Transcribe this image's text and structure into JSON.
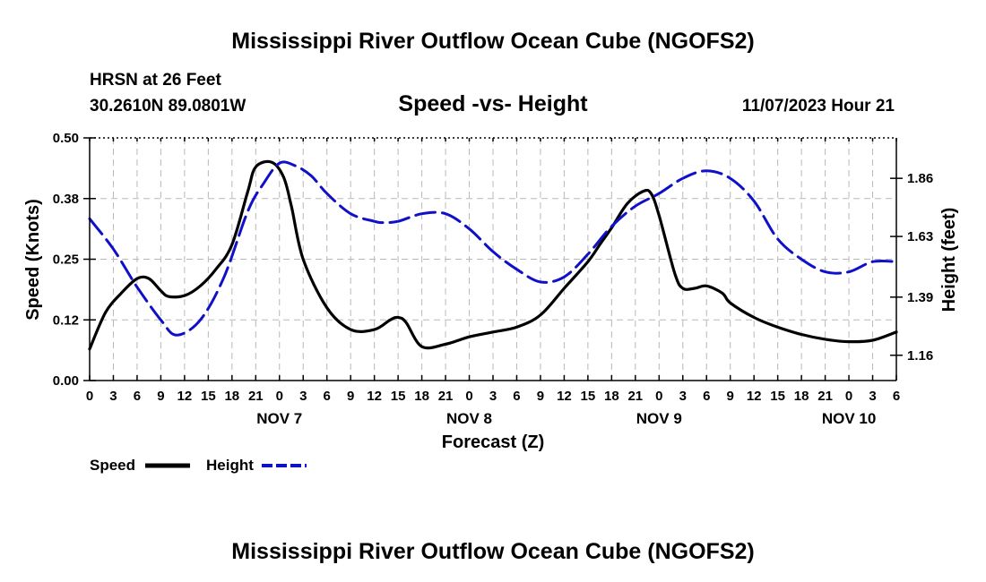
{
  "header": {
    "title": "Mississippi River Outflow Ocean Cube (NGOFS2)",
    "station": "HRSN at 26 Feet",
    "coords": "30.2610N  89.0801W",
    "chart_title": "Speed -vs- Height",
    "datetime": "11/07/2023 Hour 21"
  },
  "footer": {
    "title": "Mississippi River Outflow Ocean Cube (NGOFS2)"
  },
  "chart_data": {
    "type": "line",
    "title": "Speed -vs- Height",
    "xlabel": "Forecast (Z)",
    "ylabel": "Speed (Knots)",
    "y2label": "Height (feet)",
    "x_unit": "hours since NOV 7 00Z",
    "xlim": [
      -24,
      78
    ],
    "ylim": [
      0,
      0.5
    ],
    "y2lim": [
      1.06,
      2.02
    ],
    "x_ticks": [
      -24,
      -21,
      -18,
      -15,
      -12,
      -9,
      -6,
      -3,
      0,
      3,
      6,
      9,
      12,
      15,
      18,
      21,
      24,
      27,
      30,
      33,
      36,
      39,
      42,
      45,
      48,
      51,
      54,
      57,
      60,
      63,
      66,
      69,
      72,
      75,
      78
    ],
    "x_tick_labels": [
      "0",
      "3",
      "6",
      "9",
      "12",
      "15",
      "18",
      "21",
      "0",
      "3",
      "6",
      "9",
      "12",
      "15",
      "18",
      "21",
      "0",
      "3",
      "6",
      "9",
      "12",
      "15",
      "18",
      "21",
      "0",
      "3",
      "6",
      "9",
      "12",
      "15",
      "18",
      "21",
      "0",
      "3",
      "6"
    ],
    "day_labels": [
      {
        "x": 0,
        "label": "NOV 7"
      },
      {
        "x": 24,
        "label": "NOV 8"
      },
      {
        "x": 48,
        "label": "NOV 9"
      },
      {
        "x": 72,
        "label": "NOV 10"
      }
    ],
    "y_ticks": [
      0,
      0.125,
      0.25,
      0.375,
      0.5
    ],
    "y_tick_labels": [
      "0.00",
      "0.12",
      "0.25",
      "0.38",
      "0.50"
    ],
    "y2_ticks": [
      1.16,
      1.39,
      1.63,
      1.86
    ],
    "y2_tick_labels": [
      "1.16",
      "1.39",
      "1.63",
      "1.86"
    ],
    "grid": true,
    "legend_position": "bottom-left",
    "series": [
      {
        "name": "Speed",
        "axis": "left",
        "color": "#000000",
        "dash": "solid",
        "x": [
          -24,
          -22,
          -20,
          -18,
          -16.5,
          -15,
          -14,
          -12,
          -10,
          -8,
          -6,
          -4,
          -3,
          -1,
          0.5,
          1.5,
          3,
          6,
          9,
          12,
          14,
          15,
          16,
          18,
          21,
          24,
          27,
          30,
          33,
          36,
          39,
          40.5,
          42,
          44,
          46,
          47,
          48,
          50,
          51,
          52.5,
          54,
          56,
          57,
          60,
          63,
          66,
          69,
          72,
          75,
          78
        ],
        "y": [
          0.065,
          0.14,
          0.18,
          0.21,
          0.21,
          0.185,
          0.173,
          0.175,
          0.195,
          0.23,
          0.28,
          0.39,
          0.44,
          0.45,
          0.42,
          0.36,
          0.25,
          0.15,
          0.105,
          0.105,
          0.125,
          0.13,
          0.12,
          0.07,
          0.075,
          0.09,
          0.1,
          0.11,
          0.135,
          0.19,
          0.245,
          0.28,
          0.315,
          0.365,
          0.39,
          0.385,
          0.34,
          0.22,
          0.19,
          0.19,
          0.195,
          0.18,
          0.16,
          0.13,
          0.11,
          0.095,
          0.085,
          0.08,
          0.083,
          0.1
        ]
      },
      {
        "name": "Height",
        "axis": "right",
        "color": "#1010c8",
        "dash": "dashed",
        "x": [
          -24,
          -21,
          -18,
          -15,
          -13,
          -10,
          -7,
          -4,
          -2,
          0,
          2,
          4,
          6,
          9,
          12,
          13,
          15,
          18,
          21,
          24,
          27,
          30,
          33,
          36,
          39,
          42,
          45,
          48,
          51,
          54,
          57,
          60,
          63,
          66,
          69,
          72,
          75,
          78
        ],
        "y": [
          1.7,
          1.58,
          1.43,
          1.3,
          1.24,
          1.3,
          1.47,
          1.73,
          1.84,
          1.92,
          1.91,
          1.87,
          1.8,
          1.72,
          1.69,
          1.685,
          1.69,
          1.72,
          1.72,
          1.66,
          1.57,
          1.5,
          1.45,
          1.47,
          1.56,
          1.67,
          1.75,
          1.8,
          1.86,
          1.89,
          1.86,
          1.77,
          1.62,
          1.54,
          1.49,
          1.49,
          1.53,
          1.53
        ]
      }
    ]
  }
}
